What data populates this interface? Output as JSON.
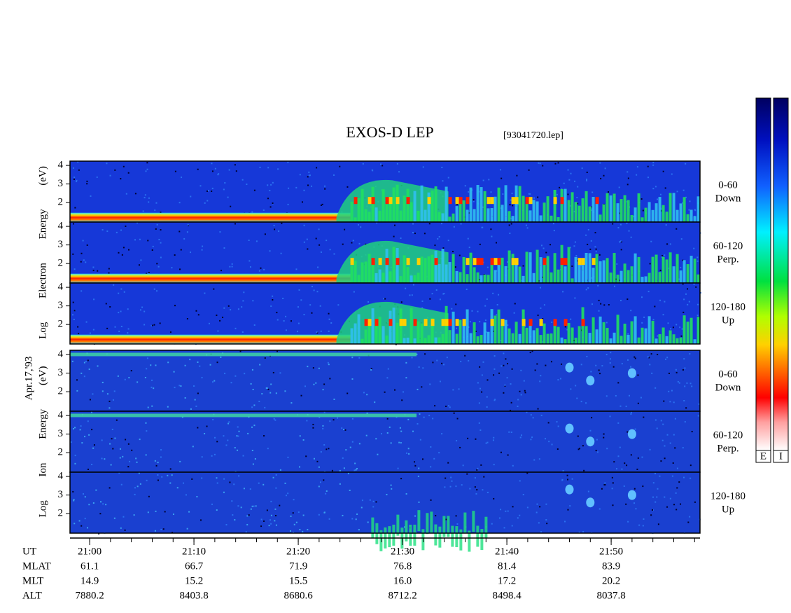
{
  "chart_data": {
    "type": "spectrogram",
    "title": "EXOS-D LEP",
    "subtitle": "[93041720.lep]",
    "date_label": "Apr.17,'93",
    "xlim": [
      "20:58:07",
      "21:58:31"
    ],
    "xticks": [
      "21:00",
      "21:10",
      "21:20",
      "21:30",
      "21:40",
      "21:50"
    ],
    "ylim": [
      0.95,
      4.23
    ],
    "yticks": [
      2,
      3,
      4
    ],
    "groups": [
      {
        "ylabel": "Log Electron Energy (eV)",
        "kind": "electron",
        "panels": [
          {
            "label": "0-60",
            "sublabel": "Down"
          },
          {
            "label": "60-120",
            "sublabel": "Perp."
          },
          {
            "label": "120-180",
            "sublabel": "Up"
          }
        ]
      },
      {
        "ylabel": "Log Ion Energy (eV)",
        "kind": "ion",
        "panels": [
          {
            "label": "0-60",
            "sublabel": "Down"
          },
          {
            "label": "60-120",
            "sublabel": "Perp."
          },
          {
            "label": "120-180",
            "sublabel": "Up"
          }
        ]
      }
    ],
    "x_row_label": "UT",
    "rows": [
      {
        "label": "MLAT",
        "values": [
          "61.1",
          "66.7",
          "71.9",
          "76.8",
          "81.4",
          "83.9"
        ]
      },
      {
        "label": "MLT",
        "values": [
          "14.9",
          "15.2",
          "15.5",
          "16.0",
          "17.2",
          "20.2"
        ]
      },
      {
        "label": "ALT",
        "values": [
          "7880.2",
          "8403.8",
          "8680.6",
          "8712.2",
          "8498.4",
          "8037.8"
        ]
      }
    ],
    "colorbars": [
      "E",
      "I"
    ]
  }
}
